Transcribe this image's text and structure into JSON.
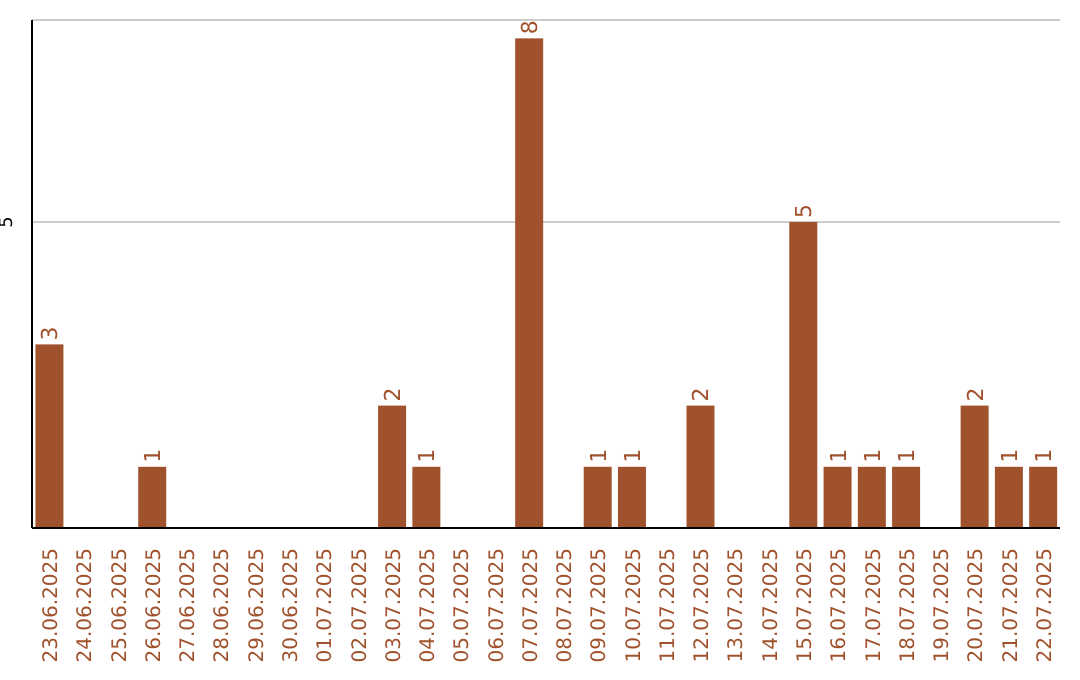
{
  "chart_data": {
    "type": "bar",
    "categories": [
      "23.06.2025",
      "24.06.2025",
      "25.06.2025",
      "26.06.2025",
      "27.06.2025",
      "28.06.2025",
      "29.06.2025",
      "30.06.2025",
      "01.07.2025",
      "02.07.2025",
      "03.07.2025",
      "04.07.2025",
      "05.07.2025",
      "06.07.2025",
      "07.07.2025",
      "08.07.2025",
      "09.07.2025",
      "10.07.2025",
      "11.07.2025",
      "12.07.2025",
      "13.07.2025",
      "14.07.2025",
      "15.07.2025",
      "16.07.2025",
      "17.07.2025",
      "18.07.2025",
      "19.07.2025",
      "20.07.2025",
      "21.07.2025",
      "22.07.2025"
    ],
    "values": [
      3,
      0,
      0,
      1,
      0,
      0,
      0,
      0,
      0,
      0,
      2,
      1,
      0,
      0,
      8,
      0,
      1,
      1,
      0,
      2,
      0,
      0,
      5,
      1,
      1,
      1,
      0,
      2,
      1,
      1
    ],
    "value_labels": [
      "3",
      null,
      null,
      "1",
      null,
      null,
      null,
      null,
      null,
      null,
      "2",
      "1",
      null,
      null,
      "8",
      null,
      "1",
      "1",
      null,
      "2",
      null,
      null,
      "5",
      "1",
      "1",
      "1",
      null,
      "2",
      "1",
      "1"
    ],
    "color": "#a0522d",
    "ylim": [
      0,
      8.3
    ],
    "yticks": [
      5
    ],
    "grid": "y"
  }
}
